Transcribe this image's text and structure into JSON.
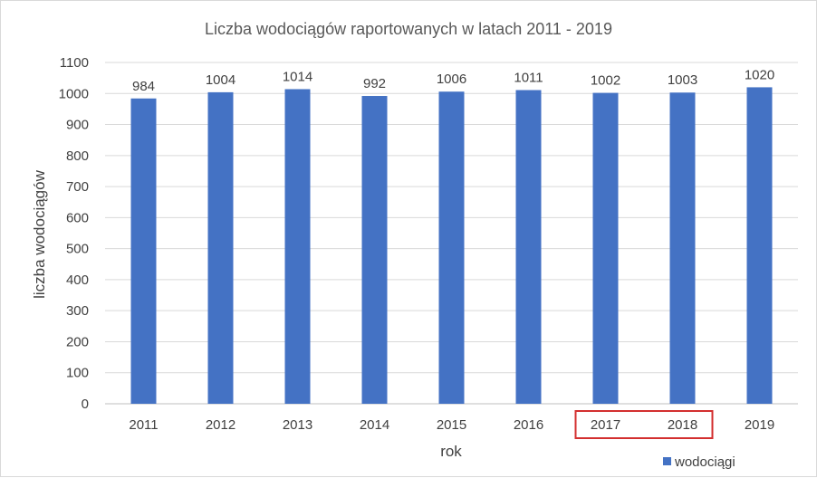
{
  "chart_data": {
    "type": "bar",
    "title": "Liczba wodociągów raportowanych w latach 2011 - 2019",
    "xlabel": "rok",
    "ylabel": "liczba wodociągów",
    "categories": [
      "2011",
      "2012",
      "2013",
      "2014",
      "2015",
      "2016",
      "2017",
      "2018",
      "2019"
    ],
    "series": [
      {
        "name": "wodociągi",
        "values": [
          984,
          1004,
          1014,
          992,
          1006,
          1011,
          1002,
          1003,
          1020
        ]
      }
    ],
    "ylim": [
      0,
      1100
    ],
    "yticks": [
      0,
      100,
      200,
      300,
      400,
      500,
      600,
      700,
      800,
      900,
      1000,
      1100
    ],
    "grid": true,
    "legend_position": "bottom-right",
    "highlighted_categories": [
      "2017",
      "2018"
    ],
    "colors": {
      "bar": "#4472C4",
      "highlight": "#D32F2F",
      "grid": "#d9d9d9"
    }
  }
}
